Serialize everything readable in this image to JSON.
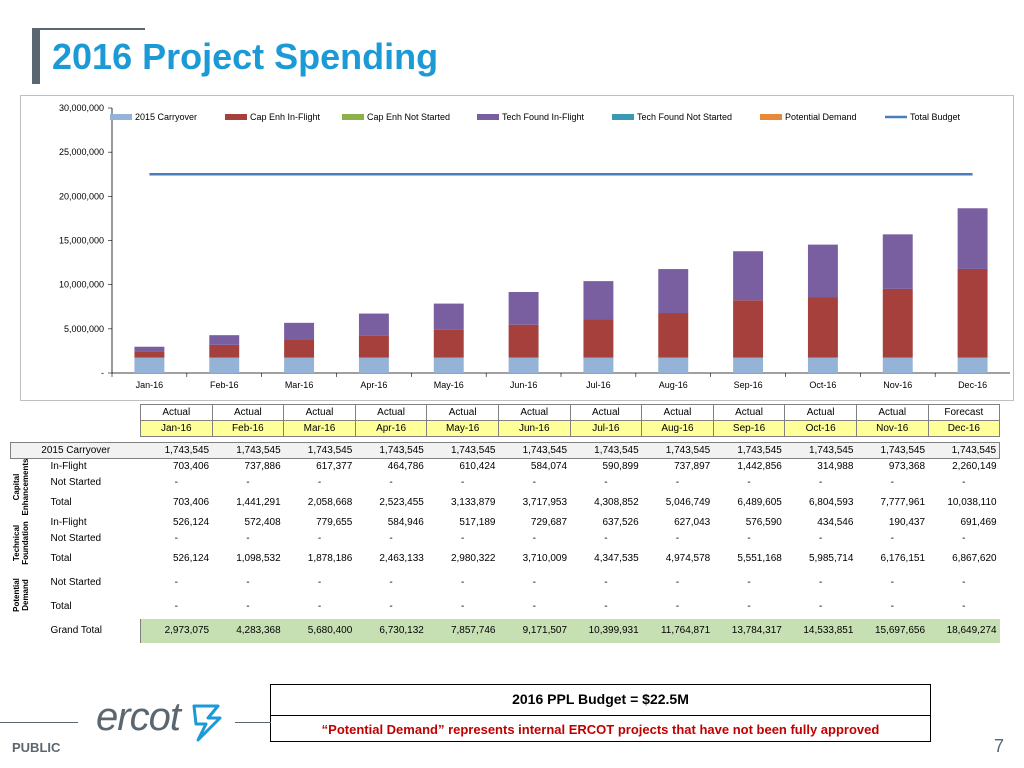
{
  "page": {
    "title": "2016 Project Spending",
    "public_label": "PUBLIC",
    "page_number": "7",
    "logo_text": "ercot"
  },
  "budget_box": {
    "title": "2016 PPL Budget  =  $22.5M",
    "note": "“Potential Demand” represents internal ERCOT projects that have not been fully approved"
  },
  "chart_data": {
    "type": "bar",
    "stacked": true,
    "categories": [
      "Jan-16",
      "Feb-16",
      "Mar-16",
      "Apr-16",
      "May-16",
      "Jun-16",
      "Jul-16",
      "Aug-16",
      "Sep-16",
      "Oct-16",
      "Nov-16",
      "Dec-16"
    ],
    "ylim": [
      0,
      30000000
    ],
    "yticks": [
      0,
      5000000,
      10000000,
      15000000,
      20000000,
      25000000,
      30000000
    ],
    "ytick_labels": [
      "-",
      "5,000,000",
      "10,000,000",
      "15,000,000",
      "20,000,000",
      "25,000,000",
      "30,000,000"
    ],
    "legend_position": "top",
    "series": [
      {
        "name": "2015 Carryover",
        "kind": "bar",
        "color": "#95b3d7",
        "values": [
          1743545,
          1743545,
          1743545,
          1743545,
          1743545,
          1743545,
          1743545,
          1743545,
          1743545,
          1743545,
          1743545,
          1743545
        ]
      },
      {
        "name": "Cap Enh In-Flight",
        "kind": "bar",
        "color": "#a5403c",
        "values": [
          703406,
          1441291,
          2058668,
          2523455,
          3133879,
          3717953,
          4308852,
          5046749,
          6489605,
          6804593,
          7777961,
          10038110
        ]
      },
      {
        "name": "Cap Enh Not Started",
        "kind": "bar",
        "color": "#8db04a",
        "values": [
          0,
          0,
          0,
          0,
          0,
          0,
          0,
          0,
          0,
          0,
          0,
          0
        ]
      },
      {
        "name": "Tech Found In-Flight",
        "kind": "bar",
        "color": "#7a5fa0",
        "values": [
          526124,
          1098532,
          1878186,
          2463133,
          2980322,
          3710009,
          4347535,
          4974578,
          5551168,
          5985714,
          6176151,
          6867620
        ]
      },
      {
        "name": "Tech Found Not Started",
        "kind": "bar",
        "color": "#3a9ab5",
        "values": [
          0,
          0,
          0,
          0,
          0,
          0,
          0,
          0,
          0,
          0,
          0,
          0
        ]
      },
      {
        "name": "Potential Demand",
        "kind": "bar",
        "color": "#e8893a",
        "values": [
          0,
          0,
          0,
          0,
          0,
          0,
          0,
          0,
          0,
          0,
          0,
          0
        ]
      },
      {
        "name": "Total Budget",
        "kind": "line",
        "color": "#4a7ebb",
        "values": [
          22500000,
          22500000,
          22500000,
          22500000,
          22500000,
          22500000,
          22500000,
          22500000,
          22500000,
          22500000,
          22500000,
          22500000
        ]
      }
    ]
  },
  "table": {
    "status_row": [
      "Actual",
      "Actual",
      "Actual",
      "Actual",
      "Actual",
      "Actual",
      "Actual",
      "Actual",
      "Actual",
      "Actual",
      "Actual",
      "Forecast"
    ],
    "month_row": [
      "Jan-16",
      "Feb-16",
      "Mar-16",
      "Apr-16",
      "May-16",
      "Jun-16",
      "Jul-16",
      "Aug-16",
      "Sep-16",
      "Oct-16",
      "Nov-16",
      "Dec-16"
    ],
    "carryover": {
      "label": "2015 Carryover",
      "values": [
        "1,743,545",
        "1,743,545",
        "1,743,545",
        "1,743,545",
        "1,743,545",
        "1,743,545",
        "1,743,545",
        "1,743,545",
        "1,743,545",
        "1,743,545",
        "1,743,545",
        "1,743,545"
      ]
    },
    "capital": {
      "group_label_1": "Capital",
      "group_label_2": "Enhancements",
      "in_flight": {
        "label": "In-Flight",
        "values": [
          "703,406",
          "737,886",
          "617,377",
          "464,786",
          "610,424",
          "584,074",
          "590,899",
          "737,897",
          "1,442,856",
          "314,988",
          "973,368",
          "2,260,149"
        ]
      },
      "not_started": {
        "label": "Not Started",
        "values": [
          "-",
          "-",
          "-",
          "-",
          "-",
          "-",
          "-",
          "-",
          "-",
          "-",
          "-",
          "-"
        ]
      },
      "total": {
        "label": "Total",
        "values": [
          "703,406",
          "1,441,291",
          "2,058,668",
          "2,523,455",
          "3,133,879",
          "3,717,953",
          "4,308,852",
          "5,046,749",
          "6,489,605",
          "6,804,593",
          "7,777,961",
          "10,038,110"
        ]
      }
    },
    "technical": {
      "group_label_1": "Technical",
      "group_label_2": "Foundation",
      "in_flight": {
        "label": "In-Flight",
        "values": [
          "526,124",
          "572,408",
          "779,655",
          "584,946",
          "517,189",
          "729,687",
          "637,526",
          "627,043",
          "576,590",
          "434,546",
          "190,437",
          "691,469"
        ]
      },
      "not_started": {
        "label": "Not Started",
        "values": [
          "-",
          "-",
          "-",
          "-",
          "-",
          "-",
          "-",
          "-",
          "-",
          "-",
          "-",
          "-"
        ]
      },
      "total": {
        "label": "Total",
        "values": [
          "526,124",
          "1,098,532",
          "1,878,186",
          "2,463,133",
          "2,980,322",
          "3,710,009",
          "4,347,535",
          "4,974,578",
          "5,551,168",
          "5,985,714",
          "6,176,151",
          "6,867,620"
        ]
      }
    },
    "potential": {
      "group_label_1": "Potential",
      "group_label_2": "Demand",
      "not_started": {
        "label": "Not Started",
        "values": [
          "-",
          "-",
          "-",
          "-",
          "-",
          "-",
          "-",
          "-",
          "-",
          "-",
          "-",
          "-"
        ]
      },
      "total": {
        "label": "Total",
        "values": [
          "-",
          "-",
          "-",
          "-",
          "-",
          "-",
          "-",
          "-",
          "-",
          "-",
          "-",
          "-"
        ]
      }
    },
    "grand_total": {
      "label": "Grand Total",
      "values": [
        "2,973,075",
        "4,283,368",
        "5,680,400",
        "6,730,132",
        "7,857,746",
        "9,171,507",
        "10,399,931",
        "11,764,871",
        "13,784,317",
        "14,533,851",
        "15,697,656",
        "18,649,274"
      ]
    }
  }
}
